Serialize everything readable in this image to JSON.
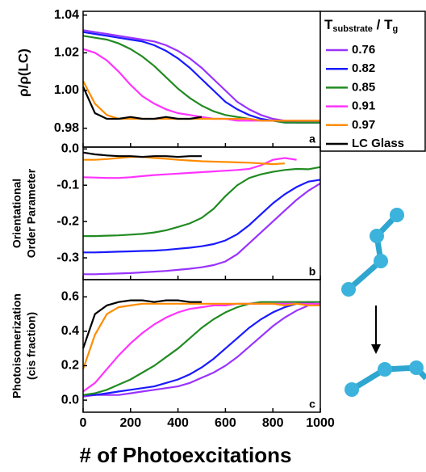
{
  "chart_data": [
    {
      "type": "line",
      "ylabel": "ρ/ρ(LC)",
      "panel": "a",
      "x": [
        0,
        50,
        100,
        150,
        200,
        250,
        300,
        350,
        400,
        450,
        500,
        550,
        600,
        650,
        700,
        750,
        800,
        850,
        900,
        950,
        1000
      ],
      "xlim": [
        0,
        1000
      ],
      "ylim": [
        0.97,
        1.042
      ],
      "yticks": [
        {
          "value": 0.98,
          "label": "0.98"
        },
        {
          "value": 1.0,
          "label": "1.00"
        },
        {
          "value": 1.02,
          "label": "1.02"
        },
        {
          "value": 1.04,
          "label": "1.04"
        }
      ],
      "legend_title": {
        "t1": "T",
        "sub1": "substrate",
        "t2": " / T",
        "sub2": "g"
      },
      "series": [
        {
          "name": "0.76",
          "color": "#9933ff",
          "values": [
            1.032,
            1.031,
            1.03,
            1.029,
            1.028,
            1.027,
            1.026,
            1.024,
            1.021,
            1.017,
            1.012,
            1.006,
            1.0,
            0.994,
            0.99,
            0.987,
            0.985,
            0.984,
            0.983,
            0.983,
            0.983
          ]
        },
        {
          "name": "0.82",
          "color": "#1a1aff",
          "values": [
            1.031,
            1.03,
            1.029,
            1.028,
            1.027,
            1.026,
            1.024,
            1.021,
            1.017,
            1.012,
            1.006,
            1.0,
            0.994,
            0.99,
            0.987,
            0.985,
            0.984,
            0.983,
            0.983,
            0.983,
            0.983
          ]
        },
        {
          "name": "0.85",
          "color": "#228b22",
          "values": [
            1.029,
            1.028,
            1.027,
            1.025,
            1.022,
            1.018,
            1.013,
            1.007,
            1.001,
            0.996,
            0.992,
            0.989,
            0.987,
            0.986,
            0.985,
            0.984,
            0.984,
            0.983,
            0.983,
            0.983,
            0.983
          ]
        },
        {
          "name": "0.91",
          "color": "#ff33ff",
          "values": [
            1.022,
            1.02,
            1.016,
            1.01,
            1.003,
            0.997,
            0.993,
            0.99,
            0.988,
            0.987,
            0.986,
            0.985,
            0.985,
            0.984,
            0.984,
            0.984,
            0.984,
            0.984,
            0.984,
            0.984,
            0.984
          ]
        },
        {
          "name": "0.97",
          "color": "#ff8c00",
          "values": [
            1.005,
            0.993,
            0.987,
            0.985,
            0.985,
            0.985,
            0.985,
            0.985,
            0.985,
            0.985,
            0.985,
            0.985,
            0.985,
            0.985,
            0.985,
            0.984,
            0.984,
            0.984,
            0.984,
            0.984,
            0.984
          ]
        },
        {
          "name": "LC Glass",
          "color": "#000000",
          "values": [
            1.002,
            0.988,
            0.985,
            0.985,
            0.986,
            0.985,
            0.985,
            0.986,
            0.985,
            0.985,
            0.986,
            null,
            null,
            null,
            null,
            null,
            null,
            null,
            null,
            null,
            null
          ]
        }
      ]
    },
    {
      "type": "line",
      "ylabel": [
        "Orientational",
        "Order Parameter"
      ],
      "panel": "b",
      "x": [
        0,
        50,
        100,
        150,
        200,
        250,
        300,
        350,
        400,
        450,
        500,
        550,
        600,
        650,
        700,
        750,
        800,
        850,
        900,
        950,
        1000
      ],
      "xlim": [
        0,
        1000
      ],
      "ylim": [
        -0.36,
        0.005
      ],
      "yticks": [
        {
          "value": 0,
          "label": "0.0"
        },
        -0.1,
        -0.2,
        -0.3
      ],
      "series": [
        {
          "color": "#9933ff",
          "values": [
            -0.345,
            -0.345,
            -0.344,
            -0.343,
            -0.342,
            -0.34,
            -0.338,
            -0.336,
            -0.333,
            -0.33,
            -0.326,
            -0.32,
            -0.31,
            -0.29,
            -0.26,
            -0.23,
            -0.2,
            -0.17,
            -0.14,
            -0.115,
            -0.095
          ]
        },
        {
          "color": "#1a1aff",
          "values": [
            -0.285,
            -0.285,
            -0.284,
            -0.283,
            -0.282,
            -0.281,
            -0.28,
            -0.278,
            -0.275,
            -0.272,
            -0.268,
            -0.262,
            -0.252,
            -0.235,
            -0.21,
            -0.18,
            -0.15,
            -0.125,
            -0.105,
            -0.09,
            -0.085
          ]
        },
        {
          "color": "#228b22",
          "values": [
            -0.24,
            -0.24,
            -0.239,
            -0.238,
            -0.236,
            -0.234,
            -0.23,
            -0.224,
            -0.215,
            -0.205,
            -0.19,
            -0.165,
            -0.13,
            -0.1,
            -0.08,
            -0.07,
            -0.063,
            -0.058,
            -0.055,
            -0.056,
            -0.05
          ]
        },
        {
          "color": "#ff33ff",
          "values": [
            -0.078,
            -0.079,
            -0.08,
            -0.08,
            -0.078,
            -0.075,
            -0.072,
            -0.07,
            -0.068,
            -0.066,
            -0.064,
            -0.062,
            -0.06,
            -0.058,
            -0.055,
            -0.045,
            -0.03,
            -0.025,
            -0.03,
            null,
            null
          ]
        },
        {
          "color": "#ff8c00",
          "values": [
            -0.03,
            -0.03,
            -0.028,
            -0.025,
            -0.022,
            -0.022,
            -0.025,
            -0.027,
            -0.03,
            -0.032,
            -0.034,
            -0.035,
            -0.036,
            -0.037,
            -0.038,
            -0.04,
            -0.042,
            -0.04,
            null,
            null,
            null
          ]
        },
        {
          "color": "#000000",
          "values": [
            -0.01,
            -0.015,
            -0.018,
            -0.02,
            -0.02,
            -0.022,
            -0.02,
            -0.02,
            -0.022,
            -0.02,
            -0.02,
            null,
            null,
            null,
            null,
            null,
            null,
            null,
            null,
            null,
            null
          ]
        }
      ]
    },
    {
      "type": "line",
      "ylabel": [
        "Photoisomerization",
        "(cis fraction)"
      ],
      "panel": "c",
      "xlabel": "# of Photoexcitations",
      "x": [
        0,
        50,
        100,
        150,
        200,
        250,
        300,
        350,
        400,
        450,
        500,
        550,
        600,
        650,
        700,
        750,
        800,
        850,
        900,
        950,
        1000
      ],
      "xlim": [
        0,
        1000
      ],
      "ylim": [
        -0.07,
        0.7
      ],
      "xticks": [
        0,
        200,
        400,
        600,
        800,
        1000
      ],
      "yticks": [
        {
          "value": 0,
          "label": "0.0"
        },
        0.2,
        0.4,
        0.6
      ],
      "series": [
        {
          "color": "#9933ff",
          "values": [
            0.02,
            0.03,
            0.03,
            0.03,
            0.04,
            0.05,
            0.06,
            0.07,
            0.08,
            0.1,
            0.13,
            0.16,
            0.2,
            0.25,
            0.31,
            0.37,
            0.43,
            0.48,
            0.52,
            0.55,
            0.55
          ]
        },
        {
          "color": "#1a1aff",
          "values": [
            0.03,
            0.03,
            0.04,
            0.05,
            0.06,
            0.07,
            0.08,
            0.1,
            0.12,
            0.15,
            0.19,
            0.24,
            0.3,
            0.36,
            0.42,
            0.47,
            0.51,
            0.54,
            0.56,
            0.57,
            0.55
          ]
        },
        {
          "color": "#228b22",
          "values": [
            0.03,
            0.04,
            0.06,
            0.09,
            0.12,
            0.16,
            0.2,
            0.25,
            0.3,
            0.36,
            0.42,
            0.47,
            0.51,
            0.54,
            0.56,
            0.57,
            0.57,
            0.57,
            0.57,
            0.57,
            0.57
          ]
        },
        {
          "color": "#ff33ff",
          "values": [
            0.05,
            0.1,
            0.18,
            0.26,
            0.33,
            0.39,
            0.44,
            0.48,
            0.51,
            0.53,
            0.54,
            0.55,
            0.55,
            0.56,
            0.56,
            0.56,
            0.56,
            0.56,
            0.56,
            0.56,
            0.56
          ]
        },
        {
          "color": "#ff8c00",
          "values": [
            0.18,
            0.38,
            0.5,
            0.54,
            0.55,
            0.56,
            0.56,
            0.56,
            0.56,
            0.56,
            0.56,
            0.56,
            0.56,
            0.56,
            0.56,
            0.56,
            0.56,
            0.55,
            0.56,
            0.55,
            0.55
          ]
        },
        {
          "color": "#000000",
          "values": [
            0.3,
            0.5,
            0.55,
            0.57,
            0.58,
            0.58,
            0.57,
            0.58,
            0.58,
            0.57,
            0.57,
            null,
            null,
            null,
            null,
            null,
            null,
            null,
            null,
            null,
            null
          ]
        }
      ]
    }
  ]
}
